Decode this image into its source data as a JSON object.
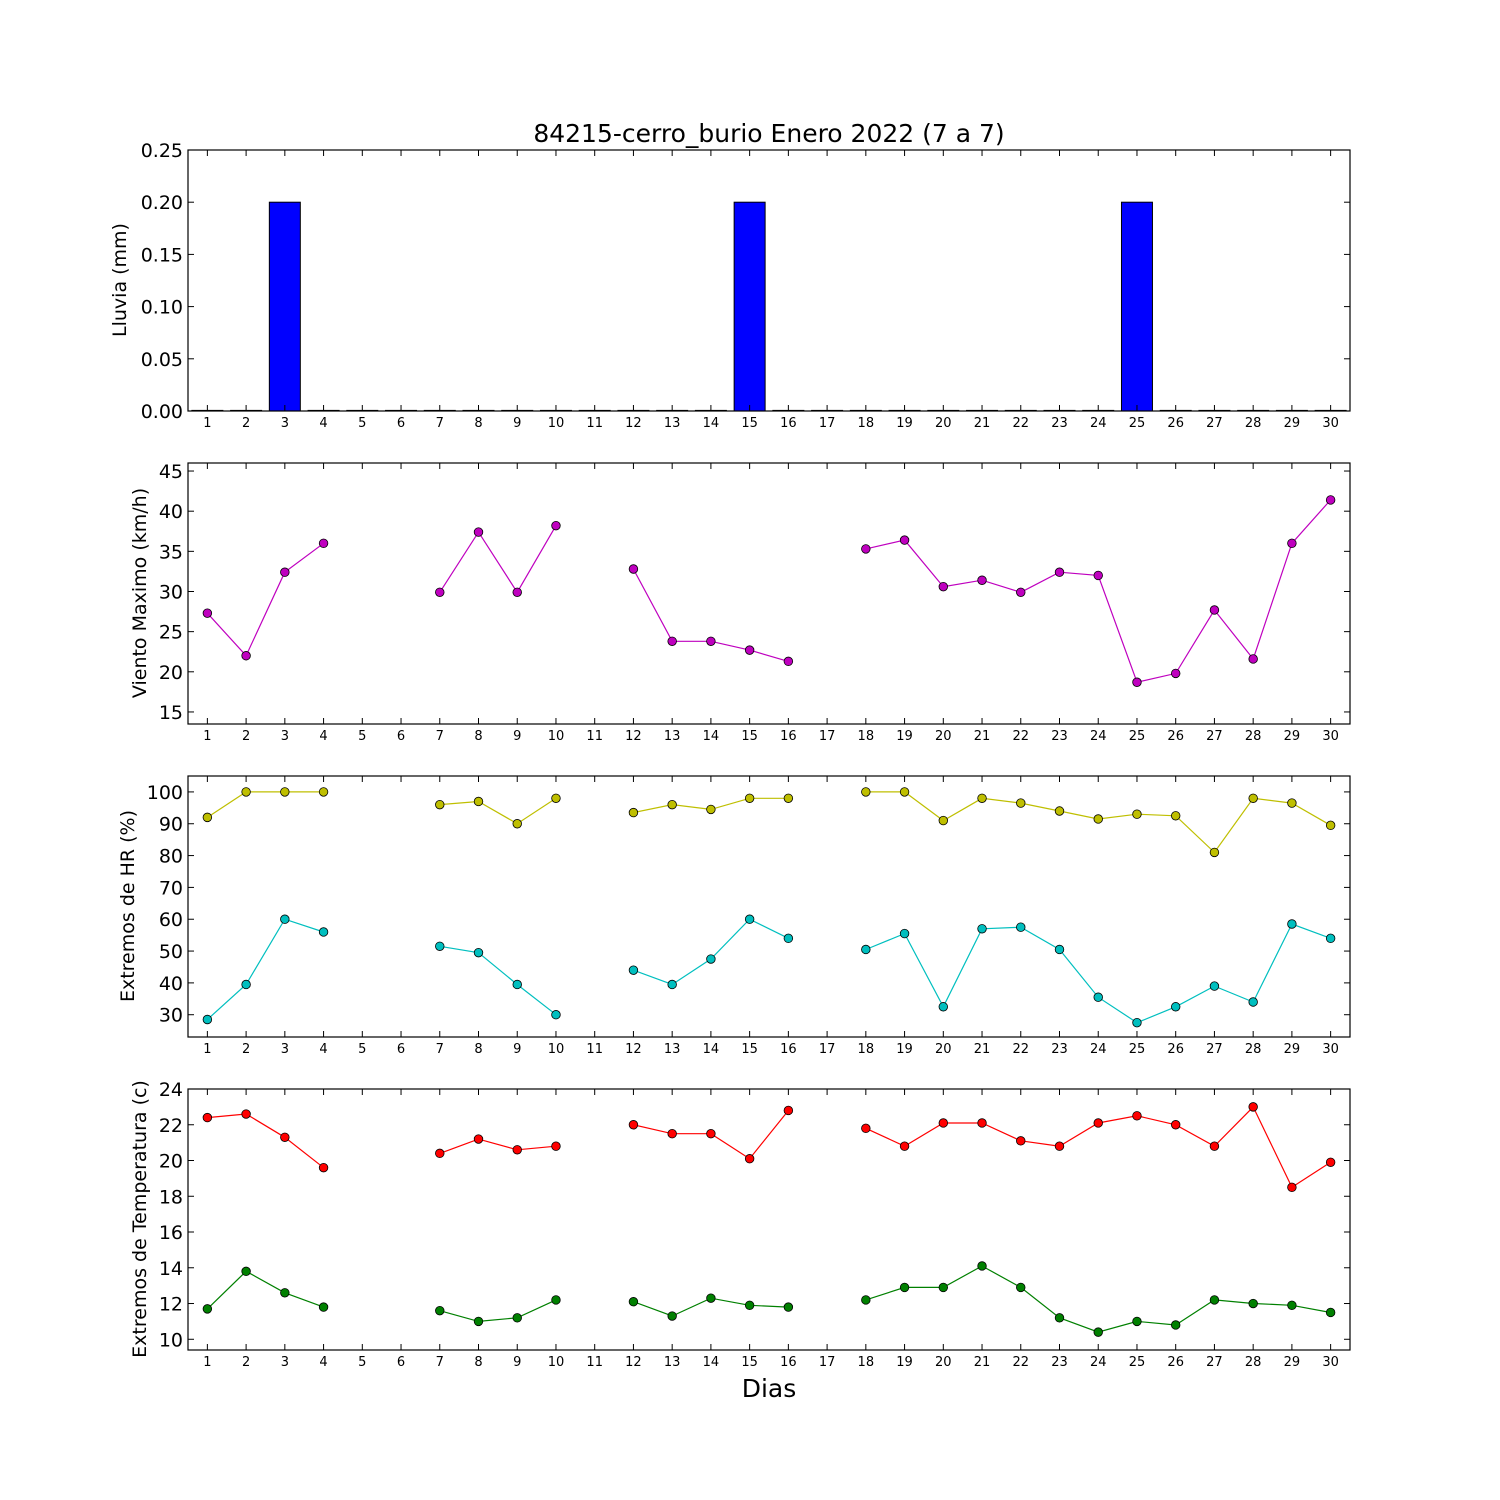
{
  "chart_data": {
    "type": "line",
    "title": "84215-cerro_burio Enero 2022  (7 a 7)",
    "xlabel": "Dias",
    "x": [
      1,
      2,
      3,
      4,
      5,
      6,
      7,
      8,
      9,
      10,
      11,
      12,
      13,
      14,
      15,
      16,
      17,
      18,
      19,
      20,
      21,
      22,
      23,
      24,
      25,
      26,
      27,
      28,
      29,
      30
    ],
    "xlim": [
      0.5,
      30.5
    ],
    "grid": false,
    "panels": [
      {
        "type": "bar",
        "ylabel": "Lluvia (mm)",
        "ylim": [
          0,
          0.25
        ],
        "yticks": [
          0.0,
          0.05,
          0.1,
          0.15,
          0.2,
          0.25
        ],
        "ytick_labels": [
          "0.00",
          "0.05",
          "0.10",
          "0.15",
          "0.20",
          "0.25"
        ],
        "series": [
          {
            "color": "#0000ff",
            "values": [
              0,
              0,
              0.2,
              0,
              0,
              0,
              0,
              0,
              0,
              0,
              0,
              0,
              0,
              0,
              0.2,
              0,
              0,
              0,
              0,
              0,
              0,
              0,
              0,
              0,
              0.2,
              0,
              0,
              0,
              0,
              0
            ]
          }
        ]
      },
      {
        "type": "line",
        "ylabel": "Viento Maximo (km/h)",
        "ylim": [
          13.5,
          46
        ],
        "yticks": [
          15,
          20,
          25,
          30,
          35,
          40,
          45
        ],
        "ytick_labels": [
          "15",
          "20",
          "25",
          "30",
          "35",
          "40",
          "45"
        ],
        "series": [
          {
            "color": "#bf00bf",
            "values": [
              27.3,
              22.0,
              32.4,
              36.0,
              null,
              null,
              29.9,
              37.4,
              29.9,
              38.2,
              null,
              32.8,
              23.8,
              23.8,
              22.7,
              21.3,
              null,
              35.3,
              36.4,
              30.6,
              31.4,
              29.9,
              32.4,
              32.0,
              18.7,
              19.8,
              27.7,
              21.6,
              36.0,
              41.4
            ]
          }
        ]
      },
      {
        "type": "line",
        "ylabel": "Extremos de HR (%)",
        "ylim": [
          23,
          105
        ],
        "yticks": [
          30,
          40,
          50,
          60,
          70,
          80,
          90,
          100
        ],
        "ytick_labels": [
          "30",
          "40",
          "50",
          "60",
          "70",
          "80",
          "90",
          "100"
        ],
        "series": [
          {
            "color": "#bfbf00",
            "values": [
              92,
              100,
              100,
              100,
              null,
              null,
              96,
              97,
              90,
              98,
              null,
              93.5,
              96,
              94.5,
              98,
              98,
              null,
              100,
              100,
              91,
              98,
              96.5,
              94,
              91.5,
              93,
              92.5,
              81,
              98,
              96.5,
              89.5
            ]
          },
          {
            "color": "#00bfbf",
            "values": [
              28.5,
              39.5,
              60,
              56,
              null,
              null,
              51.5,
              49.5,
              39.5,
              30,
              null,
              44,
              39.5,
              47.5,
              60,
              54,
              null,
              50.5,
              55.5,
              32.5,
              57,
              57.5,
              50.5,
              35.5,
              27.5,
              32.5,
              39,
              34,
              58.5,
              54
            ]
          }
        ]
      },
      {
        "type": "line",
        "ylabel": "Extremos de Temperatura (c)",
        "ylim": [
          9.4,
          24
        ],
        "yticks": [
          10,
          12,
          14,
          16,
          18,
          20,
          22,
          24
        ],
        "ytick_labels": [
          "10",
          "12",
          "14",
          "16",
          "18",
          "20",
          "22",
          "24"
        ],
        "series": [
          {
            "color": "#ff0000",
            "values": [
              22.4,
              22.6,
              21.3,
              19.6,
              null,
              null,
              20.4,
              21.2,
              20.6,
              20.8,
              null,
              22.0,
              21.5,
              21.5,
              20.1,
              22.8,
              null,
              21.8,
              20.8,
              22.1,
              22.1,
              21.1,
              20.8,
              22.1,
              22.5,
              22.0,
              20.8,
              23.0,
              18.5,
              19.9
            ]
          },
          {
            "color": "#008000",
            "values": [
              11.7,
              13.8,
              12.6,
              11.8,
              null,
              null,
              11.6,
              11.0,
              11.2,
              12.2,
              null,
              12.1,
              11.3,
              12.3,
              11.9,
              11.8,
              null,
              12.2,
              12.9,
              12.9,
              14.1,
              12.9,
              11.2,
              10.4,
              11.0,
              10.8,
              12.2,
              12.0,
              11.9,
              11.5
            ]
          }
        ]
      }
    ]
  }
}
